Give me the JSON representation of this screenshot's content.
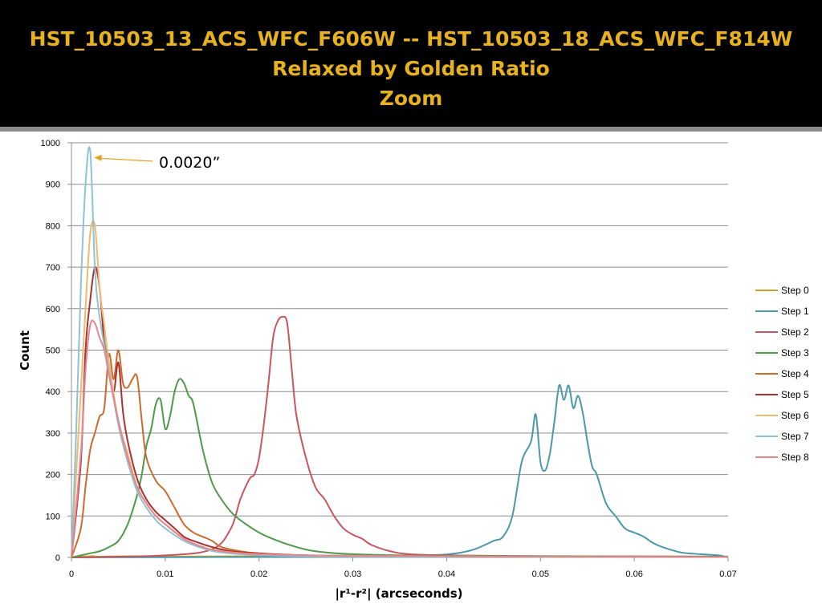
{
  "slide": {
    "title_line1": "HST_10503_13_ACS_WFC_F606W -- HST_10503_18_ACS_WFC_F814W",
    "title_line2": "Relaxed by Golden Ratio",
    "title_line3": "Zoom",
    "title_color": "#e8b21e"
  },
  "chart_data": {
    "type": "line",
    "xlabel": "|r¹-r²| (arcseconds)",
    "ylabel": "Count",
    "xlim": [
      0,
      0.07
    ],
    "ylim": [
      0,
      1000
    ],
    "xticks": [
      0,
      0.01,
      0.02,
      0.03,
      0.04,
      0.05,
      0.06,
      0.07
    ],
    "xtick_labels": [
      "0",
      "0.01",
      "0.02",
      "0.03",
      "0.04",
      "0.05",
      "0.06",
      "0.07"
    ],
    "yticks": [
      0,
      100,
      200,
      300,
      400,
      500,
      600,
      700,
      800,
      900,
      1000
    ],
    "ytick_labels": [
      "0",
      "100",
      "200",
      "300",
      "400",
      "500",
      "600",
      "700",
      "800",
      "900",
      "1000"
    ],
    "grid": "horizontal",
    "legend_position": "right",
    "annotation": {
      "text": "0.0020”",
      "x": 0.0027,
      "y": 980
    },
    "series": [
      {
        "name": "Step 0",
        "color": "#c9a227",
        "x": [
          0,
          0.002,
          0.003,
          0.006,
          0.01,
          0.02,
          0.03,
          0.05,
          0.07
        ],
        "y": [
          0,
          3,
          2,
          3,
          2,
          3,
          2,
          2,
          2
        ]
      },
      {
        "name": "Step 1",
        "color": "#4a98a8",
        "x": [
          0,
          0.03,
          0.038,
          0.041,
          0.043,
          0.045,
          0.046,
          0.047,
          0.048,
          0.049,
          0.0495,
          0.05,
          0.0505,
          0.051,
          0.0515,
          0.052,
          0.0525,
          0.053,
          0.0535,
          0.054,
          0.0545,
          0.055,
          0.0555,
          0.056,
          0.057,
          0.058,
          0.059,
          0.06,
          0.061,
          0.062,
          0.063,
          0.065,
          0.067,
          0.069,
          0.07
        ],
        "y": [
          0,
          2,
          5,
          10,
          20,
          40,
          50,
          100,
          230,
          280,
          345,
          230,
          210,
          250,
          330,
          415,
          380,
          415,
          360,
          390,
          350,
          280,
          220,
          200,
          130,
          100,
          70,
          60,
          50,
          35,
          25,
          12,
          8,
          5,
          0
        ]
      },
      {
        "name": "Step 2",
        "color": "#c9555f",
        "x": [
          0,
          0.01,
          0.015,
          0.017,
          0.018,
          0.019,
          0.0195,
          0.02,
          0.0205,
          0.021,
          0.0215,
          0.022,
          0.0225,
          0.023,
          0.0235,
          0.024,
          0.025,
          0.026,
          0.027,
          0.028,
          0.029,
          0.03,
          0.031,
          0.032,
          0.034,
          0.036,
          0.04,
          0.05,
          0.07
        ],
        "y": [
          0,
          5,
          20,
          70,
          140,
          190,
          200,
          240,
          320,
          420,
          530,
          570,
          580,
          565,
          450,
          340,
          240,
          170,
          140,
          100,
          70,
          55,
          45,
          30,
          15,
          8,
          5,
          3,
          2
        ]
      },
      {
        "name": "Step 3",
        "color": "#4e9a4a",
        "x": [
          0,
          0.001,
          0.002,
          0.003,
          0.004,
          0.005,
          0.006,
          0.007,
          0.0075,
          0.008,
          0.0085,
          0.009,
          0.0095,
          0.01,
          0.0105,
          0.011,
          0.0115,
          0.012,
          0.0125,
          0.013,
          0.014,
          0.015,
          0.016,
          0.017,
          0.018,
          0.02,
          0.022,
          0.024,
          0.026,
          0.03,
          0.04,
          0.07
        ],
        "y": [
          0,
          5,
          10,
          15,
          25,
          40,
          80,
          150,
          200,
          270,
          310,
          370,
          380,
          310,
          340,
          400,
          430,
          420,
          390,
          370,
          260,
          180,
          140,
          110,
          90,
          60,
          40,
          25,
          15,
          8,
          4,
          2
        ]
      },
      {
        "name": "Step 4",
        "color": "#cc6a2e",
        "x": [
          0,
          0.001,
          0.0015,
          0.002,
          0.0025,
          0.003,
          0.0035,
          0.004,
          0.0045,
          0.005,
          0.0055,
          0.006,
          0.0065,
          0.007,
          0.0075,
          0.008,
          0.009,
          0.01,
          0.011,
          0.012,
          0.013,
          0.014,
          0.015,
          0.016,
          0.018,
          0.02,
          0.025,
          0.03,
          0.04,
          0.07
        ],
        "y": [
          0,
          70,
          170,
          260,
          300,
          340,
          360,
          490,
          430,
          500,
          420,
          410,
          430,
          435,
          330,
          240,
          185,
          160,
          120,
          80,
          60,
          50,
          40,
          25,
          15,
          10,
          5,
          4,
          2,
          1
        ]
      },
      {
        "name": "Step 5",
        "color": "#a8322e",
        "x": [
          0,
          0.001,
          0.0015,
          0.002,
          0.0025,
          0.003,
          0.0035,
          0.004,
          0.0045,
          0.005,
          0.0055,
          0.006,
          0.007,
          0.008,
          0.009,
          0.01,
          0.011,
          0.012,
          0.013,
          0.015,
          0.017,
          0.02,
          0.025,
          0.03,
          0.04,
          0.07
        ],
        "y": [
          0,
          230,
          500,
          620,
          700,
          650,
          520,
          470,
          400,
          470,
          350,
          280,
          190,
          140,
          110,
          90,
          70,
          50,
          40,
          25,
          15,
          10,
          5,
          3,
          2,
          1
        ]
      },
      {
        "name": "Step 6",
        "color": "#f0b870",
        "x": [
          0,
          0.001,
          0.0015,
          0.002,
          0.0025,
          0.003,
          0.0035,
          0.004,
          0.005,
          0.006,
          0.007,
          0.008,
          0.009,
          0.01,
          0.012,
          0.014,
          0.016,
          0.02,
          0.03,
          0.07
        ],
        "y": [
          0,
          400,
          600,
          780,
          800,
          650,
          560,
          470,
          330,
          250,
          170,
          130,
          100,
          80,
          45,
          25,
          15,
          8,
          3,
          1
        ]
      },
      {
        "name": "Step 7",
        "color": "#8ec3d4",
        "x": [
          0,
          0.0005,
          0.001,
          0.0015,
          0.002,
          0.0025,
          0.003,
          0.004,
          0.005,
          0.006,
          0.007,
          0.008,
          0.009,
          0.01,
          0.012,
          0.014,
          0.016,
          0.02,
          0.03,
          0.07
        ],
        "y": [
          0,
          300,
          650,
          900,
          980,
          700,
          580,
          450,
          320,
          230,
          160,
          120,
          90,
          70,
          40,
          22,
          12,
          6,
          2,
          1
        ]
      },
      {
        "name": "Step 8",
        "color": "#e8848c",
        "x": [
          0,
          0.001,
          0.0015,
          0.002,
          0.0025,
          0.003,
          0.0035,
          0.004,
          0.005,
          0.006,
          0.007,
          0.008,
          0.009,
          0.01,
          0.012,
          0.014,
          0.016,
          0.02,
          0.03,
          0.05,
          0.07
        ],
        "y": [
          0,
          250,
          450,
          560,
          565,
          530,
          500,
          440,
          330,
          240,
          170,
          130,
          100,
          80,
          45,
          25,
          15,
          8,
          4,
          2,
          1
        ]
      }
    ]
  }
}
